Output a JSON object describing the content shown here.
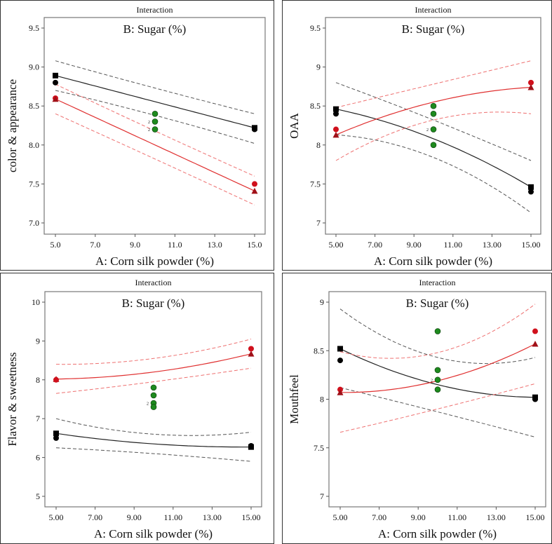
{
  "chart_data": [
    {
      "type": "line",
      "header": "Interaction",
      "title": "B: Sugar (%)",
      "xlabel": "A: Corn silk powder (%)",
      "ylabel": "color & appearance",
      "xlim": [
        5,
        15
      ],
      "ylim": [
        7.0,
        9.5
      ],
      "x_ticks": [
        "5.0",
        "7.0",
        "9.0",
        "11.0",
        "13.0",
        "15.0"
      ],
      "y_ticks": [
        "7.0",
        "7.5",
        "8.0",
        "8.5",
        "9.0",
        "9.5"
      ],
      "x": [
        5,
        10,
        15
      ],
      "series": [
        {
          "name": "black",
          "color": "#222222",
          "values": [
            8.89,
            8.555,
            8.22
          ],
          "ci_upper": [
            9.08,
            8.73,
            8.4
          ],
          "ci_lower": [
            8.7,
            8.38,
            8.02
          ]
        },
        {
          "name": "red",
          "color": "#e03030",
          "values": [
            8.59,
            8.0,
            7.41
          ],
          "ci_upper": [
            8.78,
            8.18,
            7.6
          ],
          "ci_lower": [
            8.4,
            7.82,
            7.23
          ]
        }
      ],
      "points": [
        {
          "x": 5,
          "y": 8.89,
          "shape": "square",
          "color": "#000000"
        },
        {
          "x": 15,
          "y": 8.22,
          "shape": "square",
          "color": "#000000"
        },
        {
          "x": 5,
          "y": 8.8,
          "shape": "circle",
          "color": "#000000"
        },
        {
          "x": 15,
          "y": 8.2,
          "shape": "circle",
          "color": "#000000"
        },
        {
          "x": 5,
          "y": 8.6,
          "shape": "circle",
          "color": "#d0101c"
        },
        {
          "x": 15,
          "y": 7.5,
          "shape": "circle",
          "color": "#d0101c"
        },
        {
          "x": 5,
          "y": 8.59,
          "shape": "triangle",
          "color": "#a01018"
        },
        {
          "x": 15,
          "y": 7.41,
          "shape": "triangle",
          "color": "#a01018"
        },
        {
          "x": 10,
          "y": 8.4,
          "shape": "circle",
          "color": "#1e8a1e"
        },
        {
          "x": 10,
          "y": 8.3,
          "shape": "circle",
          "color": "#1e8a1e",
          "count": "2"
        },
        {
          "x": 10,
          "y": 8.2,
          "shape": "circle",
          "color": "#1e8a1e",
          "count": "2"
        }
      ]
    },
    {
      "type": "line",
      "header": "Interaction",
      "title": "B: Sugar (%)",
      "xlabel": "A: Corn silk powder (%)",
      "ylabel": "OAA",
      "xlim": [
        5,
        15
      ],
      "ylim": [
        7,
        9.5
      ],
      "x_ticks": [
        "5.00",
        "7.00",
        "9.00",
        "11.00",
        "13.00",
        "15.00"
      ],
      "y_ticks": [
        "7",
        "7.5",
        "8",
        "8.5",
        "9",
        "9.5"
      ],
      "x": [
        5,
        10,
        15
      ],
      "series": [
        {
          "name": "black",
          "color": "#222222",
          "values": [
            8.46,
            8.08,
            7.46
          ],
          "ci_upper": [
            8.8,
            8.32,
            7.8
          ],
          "ci_lower": [
            8.13,
            7.84,
            7.13
          ]
        },
        {
          "name": "red",
          "color": "#e03030",
          "values": [
            8.13,
            8.55,
            8.74
          ],
          "ci_upper": [
            8.48,
            8.78,
            9.08
          ],
          "ci_lower": [
            7.8,
            8.32,
            8.4
          ]
        }
      ],
      "points": [
        {
          "x": 5,
          "y": 8.46,
          "shape": "square",
          "color": "#000000"
        },
        {
          "x": 15,
          "y": 7.46,
          "shape": "square",
          "color": "#000000"
        },
        {
          "x": 5,
          "y": 8.4,
          "shape": "circle",
          "color": "#000000"
        },
        {
          "x": 15,
          "y": 7.4,
          "shape": "circle",
          "color": "#000000"
        },
        {
          "x": 5,
          "y": 8.2,
          "shape": "circle",
          "color": "#d0101c"
        },
        {
          "x": 15,
          "y": 8.8,
          "shape": "circle",
          "color": "#d0101c"
        },
        {
          "x": 5,
          "y": 8.13,
          "shape": "triangle",
          "color": "#a01018"
        },
        {
          "x": 15,
          "y": 8.74,
          "shape": "triangle",
          "color": "#a01018"
        },
        {
          "x": 10,
          "y": 8.5,
          "shape": "circle",
          "color": "#1e8a1e"
        },
        {
          "x": 10,
          "y": 8.4,
          "shape": "circle",
          "color": "#1e8a1e"
        },
        {
          "x": 10,
          "y": 8.2,
          "shape": "circle",
          "color": "#1e8a1e",
          "count": "2"
        },
        {
          "x": 10,
          "y": 8.0,
          "shape": "circle",
          "color": "#1e8a1e"
        }
      ]
    },
    {
      "type": "line",
      "header": "Interaction",
      "title": "B: Sugar (%)",
      "xlabel": "A: Corn silk powder (%)",
      "ylabel": "Flavor & sweetness",
      "xlim": [
        5,
        15
      ],
      "ylim": [
        5,
        10
      ],
      "x_ticks": [
        "5.00",
        "7.00",
        "9.00",
        "11.00",
        "13.00",
        "15.00"
      ],
      "y_ticks": [
        "5",
        "6",
        "7",
        "8",
        "9",
        "10"
      ],
      "x": [
        5,
        10,
        15
      ],
      "series": [
        {
          "name": "black",
          "color": "#222222",
          "values": [
            6.62,
            6.35,
            6.27
          ],
          "ci_upper": [
            7.0,
            6.6,
            6.65
          ],
          "ci_lower": [
            6.25,
            6.1,
            5.9
          ]
        },
        {
          "name": "red",
          "color": "#e03030",
          "values": [
            8.02,
            8.2,
            8.67
          ],
          "ci_upper": [
            8.4,
            8.55,
            9.05
          ],
          "ci_lower": [
            7.65,
            7.95,
            8.3
          ]
        }
      ],
      "points": [
        {
          "x": 5,
          "y": 6.62,
          "shape": "square",
          "color": "#000000"
        },
        {
          "x": 15,
          "y": 6.27,
          "shape": "square",
          "color": "#000000"
        },
        {
          "x": 5,
          "y": 6.5,
          "shape": "circle",
          "color": "#000000"
        },
        {
          "x": 15,
          "y": 6.3,
          "shape": "circle",
          "color": "#000000"
        },
        {
          "x": 5,
          "y": 8.02,
          "shape": "triangle",
          "color": "#a01018"
        },
        {
          "x": 15,
          "y": 8.67,
          "shape": "triangle",
          "color": "#a01018"
        },
        {
          "x": 5,
          "y": 8.0,
          "shape": "circle",
          "color": "#d0101c"
        },
        {
          "x": 15,
          "y": 8.8,
          "shape": "circle",
          "color": "#d0101c"
        },
        {
          "x": 10,
          "y": 7.8,
          "shape": "circle",
          "color": "#1e8a1e"
        },
        {
          "x": 10,
          "y": 7.6,
          "shape": "circle",
          "color": "#1e8a1e"
        },
        {
          "x": 10,
          "y": 7.4,
          "shape": "circle",
          "color": "#1e8a1e",
          "count": "2"
        },
        {
          "x": 10,
          "y": 7.3,
          "shape": "circle",
          "color": "#1e8a1e"
        }
      ]
    },
    {
      "type": "line",
      "header": "Interaction",
      "title": "B: Sugar (%)",
      "xlabel": "A: Corn silk powder (%)",
      "ylabel": "Mouthfeel",
      "xlim": [
        5,
        15
      ],
      "ylim": [
        7,
        9
      ],
      "x_ticks": [
        "5.00",
        "7.00",
        "9.00",
        "11.00",
        "13.00",
        "15.00"
      ],
      "y_ticks": [
        "7",
        "7.5",
        "8",
        "8.5",
        "9"
      ],
      "x": [
        5,
        10,
        15
      ],
      "series": [
        {
          "name": "black",
          "color": "#222222",
          "values": [
            8.52,
            8.15,
            8.02
          ],
          "ci_upper": [
            8.93,
            8.43,
            8.43
          ],
          "ci_lower": [
            8.12,
            7.87,
            7.61
          ]
        },
        {
          "name": "red",
          "color": "#e03030",
          "values": [
            8.07,
            8.19,
            8.57
          ],
          "ci_upper": [
            8.49,
            8.48,
            8.98
          ],
          "ci_lower": [
            7.66,
            7.9,
            8.16
          ]
        }
      ],
      "points": [
        {
          "x": 5,
          "y": 8.52,
          "shape": "square",
          "color": "#000000"
        },
        {
          "x": 15,
          "y": 8.02,
          "shape": "square",
          "color": "#000000"
        },
        {
          "x": 5,
          "y": 8.4,
          "shape": "circle",
          "color": "#000000"
        },
        {
          "x": 15,
          "y": 8.0,
          "shape": "circle",
          "color": "#000000"
        },
        {
          "x": 5,
          "y": 8.1,
          "shape": "circle",
          "color": "#d0101c"
        },
        {
          "x": 15,
          "y": 8.7,
          "shape": "circle",
          "color": "#d0101c"
        },
        {
          "x": 5,
          "y": 8.07,
          "shape": "triangle",
          "color": "#a01018"
        },
        {
          "x": 15,
          "y": 8.57,
          "shape": "triangle",
          "color": "#a01018"
        },
        {
          "x": 10,
          "y": 8.7,
          "shape": "circle",
          "color": "#1e8a1e"
        },
        {
          "x": 10,
          "y": 8.3,
          "shape": "circle",
          "color": "#1e8a1e"
        },
        {
          "x": 10,
          "y": 8.2,
          "shape": "circle",
          "color": "#1e8a1e",
          "count": "2"
        },
        {
          "x": 10,
          "y": 8.1,
          "shape": "circle",
          "color": "#1e8a1e"
        }
      ]
    }
  ]
}
